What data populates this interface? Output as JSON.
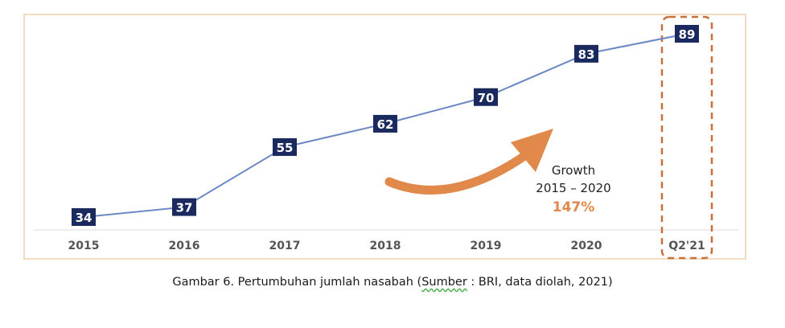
{
  "chart_data": {
    "type": "line",
    "categories": [
      "2015",
      "2016",
      "2017",
      "2018",
      "2019",
      "2020",
      "Q2'21"
    ],
    "values": [
      34,
      37,
      55,
      62,
      70,
      83,
      89
    ],
    "value_labels": [
      "34",
      "37",
      "55",
      "62",
      "70",
      "83",
      "89"
    ],
    "ylim": [
      25,
      95
    ],
    "grid": false,
    "highlight_category": "Q2'21",
    "annotation": {
      "line1": "Growth",
      "line2": "2015 – 2020",
      "value": "147%"
    },
    "colors": {
      "line": "#6a87c5",
      "label_box": "#1b2a5e",
      "label_text": "#ffffff",
      "axis_text": "#555555",
      "accent": "#e0894a",
      "highlight_border": "#c8703c",
      "baseline": "#dddddd"
    }
  },
  "caption": {
    "prefix": "Gambar 6. Pertumbuhan jumlah nasabah (",
    "source_word": "Sumber",
    "suffix": " : BRI, data diolah, 2021)"
  }
}
